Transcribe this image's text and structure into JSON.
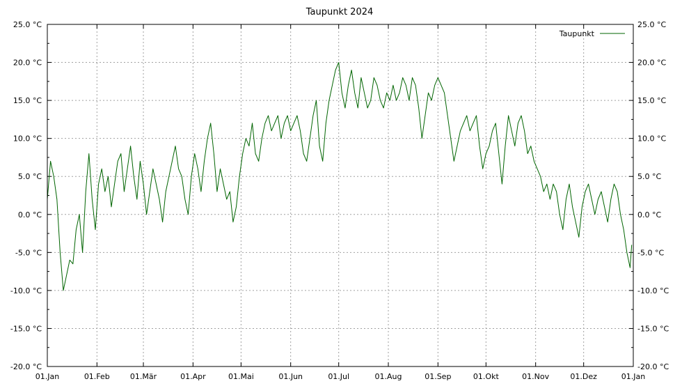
{
  "chart_data": {
    "type": "line",
    "title": "Taupunkt 2024",
    "xlabel": "",
    "ylabel": "",
    "ylim": [
      -20,
      25
    ],
    "y_ticks": [
      -20,
      -15,
      -10,
      -5,
      0,
      5,
      10,
      15,
      20,
      25
    ],
    "y_tick_labels": [
      "-20.0 °C",
      "-15.0 °C",
      "-10.0 °C",
      "-5.0 °C",
      "0.0 °C",
      "5.0 °C",
      "10.0 °C",
      "15.0 °C",
      "20.0 °C",
      "25.0 °C"
    ],
    "y_minor_step": 2.5,
    "y_axes": "left and right",
    "x_range": [
      "2024-01-01",
      "2025-01-01"
    ],
    "x_tick_dates": [
      "2024-01-01",
      "2024-02-01",
      "2024-03-01",
      "2024-04-01",
      "2024-05-01",
      "2024-06-01",
      "2024-07-01",
      "2024-08-01",
      "2024-09-01",
      "2024-10-01",
      "2024-11-01",
      "2024-12-01",
      "2025-01-01"
    ],
    "x_tick_labels": [
      "01.Jan",
      "01.Feb",
      "01.Mär",
      "01.Apr",
      "01.Mai",
      "01.Jun",
      "01.Jul",
      "01.Aug",
      "01.Sep",
      "01.Okt",
      "01.Nov",
      "01.Dez",
      "01.Jan"
    ],
    "grid": true,
    "legend_position": "top-right",
    "line_color": "#006400",
    "series": [
      {
        "name": "Taupunkt",
        "points": [
          [
            "2024-01-01",
            2.0
          ],
          [
            "2024-01-03",
            7.0
          ],
          [
            "2024-01-05",
            5.0
          ],
          [
            "2024-01-07",
            2.0
          ],
          [
            "2024-01-09",
            -5.0
          ],
          [
            "2024-01-11",
            -10.0
          ],
          [
            "2024-01-13",
            -8.0
          ],
          [
            "2024-01-15",
            -6.0
          ],
          [
            "2024-01-17",
            -6.5
          ],
          [
            "2024-01-19",
            -2.0
          ],
          [
            "2024-01-21",
            0.0
          ],
          [
            "2024-01-23",
            -5.0
          ],
          [
            "2024-01-25",
            3.0
          ],
          [
            "2024-01-27",
            8.0
          ],
          [
            "2024-01-29",
            2.0
          ],
          [
            "2024-01-31",
            -2.0
          ],
          [
            "2024-02-02",
            4.0
          ],
          [
            "2024-02-04",
            6.0
          ],
          [
            "2024-02-06",
            3.0
          ],
          [
            "2024-02-08",
            5.0
          ],
          [
            "2024-02-10",
            1.0
          ],
          [
            "2024-02-12",
            4.0
          ],
          [
            "2024-02-14",
            7.0
          ],
          [
            "2024-02-16",
            8.0
          ],
          [
            "2024-02-18",
            3.0
          ],
          [
            "2024-02-20",
            6.0
          ],
          [
            "2024-02-22",
            9.0
          ],
          [
            "2024-02-24",
            5.0
          ],
          [
            "2024-02-26",
            2.0
          ],
          [
            "2024-02-28",
            7.0
          ],
          [
            "2024-03-01",
            4.0
          ],
          [
            "2024-03-03",
            0.0
          ],
          [
            "2024-03-05",
            3.0
          ],
          [
            "2024-03-07",
            6.0
          ],
          [
            "2024-03-09",
            4.0
          ],
          [
            "2024-03-11",
            2.0
          ],
          [
            "2024-03-13",
            -1.0
          ],
          [
            "2024-03-15",
            3.0
          ],
          [
            "2024-03-17",
            5.0
          ],
          [
            "2024-03-19",
            7.0
          ],
          [
            "2024-03-21",
            9.0
          ],
          [
            "2024-03-23",
            6.0
          ],
          [
            "2024-03-25",
            5.0
          ],
          [
            "2024-03-27",
            2.0
          ],
          [
            "2024-03-29",
            0.0
          ],
          [
            "2024-03-31",
            5.0
          ],
          [
            "2024-04-02",
            8.0
          ],
          [
            "2024-04-04",
            6.0
          ],
          [
            "2024-04-06",
            3.0
          ],
          [
            "2024-04-08",
            7.0
          ],
          [
            "2024-04-10",
            10.0
          ],
          [
            "2024-04-12",
            12.0
          ],
          [
            "2024-04-14",
            8.0
          ],
          [
            "2024-04-16",
            3.0
          ],
          [
            "2024-04-18",
            6.0
          ],
          [
            "2024-04-20",
            4.0
          ],
          [
            "2024-04-22",
            2.0
          ],
          [
            "2024-04-24",
            3.0
          ],
          [
            "2024-04-26",
            -1.0
          ],
          [
            "2024-04-28",
            1.0
          ],
          [
            "2024-04-30",
            5.0
          ],
          [
            "2024-05-02",
            8.0
          ],
          [
            "2024-05-04",
            10.0
          ],
          [
            "2024-05-06",
            9.0
          ],
          [
            "2024-05-08",
            12.0
          ],
          [
            "2024-05-10",
            8.0
          ],
          [
            "2024-05-12",
            7.0
          ],
          [
            "2024-05-14",
            10.0
          ],
          [
            "2024-05-16",
            12.0
          ],
          [
            "2024-05-18",
            13.0
          ],
          [
            "2024-05-20",
            11.0
          ],
          [
            "2024-05-22",
            12.0
          ],
          [
            "2024-05-24",
            13.0
          ],
          [
            "2024-05-26",
            10.0
          ],
          [
            "2024-05-28",
            12.0
          ],
          [
            "2024-05-30",
            13.0
          ],
          [
            "2024-06-01",
            11.0
          ],
          [
            "2024-06-03",
            12.0
          ],
          [
            "2024-06-05",
            13.0
          ],
          [
            "2024-06-07",
            11.0
          ],
          [
            "2024-06-09",
            8.0
          ],
          [
            "2024-06-11",
            7.0
          ],
          [
            "2024-06-13",
            10.0
          ],
          [
            "2024-06-15",
            13.0
          ],
          [
            "2024-06-17",
            15.0
          ],
          [
            "2024-06-19",
            9.0
          ],
          [
            "2024-06-21",
            7.0
          ],
          [
            "2024-06-23",
            12.0
          ],
          [
            "2024-06-25",
            15.0
          ],
          [
            "2024-06-27",
            17.0
          ],
          [
            "2024-06-29",
            19.0
          ],
          [
            "2024-07-01",
            20.0
          ],
          [
            "2024-07-03",
            16.0
          ],
          [
            "2024-07-05",
            14.0
          ],
          [
            "2024-07-07",
            17.0
          ],
          [
            "2024-07-09",
            19.0
          ],
          [
            "2024-07-11",
            16.0
          ],
          [
            "2024-07-13",
            14.0
          ],
          [
            "2024-07-15",
            18.0
          ],
          [
            "2024-07-17",
            16.0
          ],
          [
            "2024-07-19",
            14.0
          ],
          [
            "2024-07-21",
            15.0
          ],
          [
            "2024-07-23",
            18.0
          ],
          [
            "2024-07-25",
            17.0
          ],
          [
            "2024-07-27",
            15.0
          ],
          [
            "2024-07-29",
            14.0
          ],
          [
            "2024-07-31",
            16.0
          ],
          [
            "2024-08-02",
            15.0
          ],
          [
            "2024-08-04",
            17.0
          ],
          [
            "2024-08-06",
            15.0
          ],
          [
            "2024-08-08",
            16.0
          ],
          [
            "2024-08-10",
            18.0
          ],
          [
            "2024-08-12",
            17.0
          ],
          [
            "2024-08-14",
            15.0
          ],
          [
            "2024-08-16",
            18.0
          ],
          [
            "2024-08-18",
            17.0
          ],
          [
            "2024-08-20",
            14.0
          ],
          [
            "2024-08-22",
            10.0
          ],
          [
            "2024-08-24",
            13.0
          ],
          [
            "2024-08-26",
            16.0
          ],
          [
            "2024-08-28",
            15.0
          ],
          [
            "2024-08-30",
            17.0
          ],
          [
            "2024-09-01",
            18.0
          ],
          [
            "2024-09-03",
            17.0
          ],
          [
            "2024-09-05",
            16.0
          ],
          [
            "2024-09-07",
            13.0
          ],
          [
            "2024-09-09",
            10.0
          ],
          [
            "2024-09-11",
            7.0
          ],
          [
            "2024-09-13",
            9.0
          ],
          [
            "2024-09-15",
            11.0
          ],
          [
            "2024-09-17",
            12.0
          ],
          [
            "2024-09-19",
            13.0
          ],
          [
            "2024-09-21",
            11.0
          ],
          [
            "2024-09-23",
            12.0
          ],
          [
            "2024-09-25",
            13.0
          ],
          [
            "2024-09-27",
            9.0
          ],
          [
            "2024-09-29",
            6.0
          ],
          [
            "2024-10-01",
            8.0
          ],
          [
            "2024-10-03",
            9.0
          ],
          [
            "2024-10-05",
            11.0
          ],
          [
            "2024-10-07",
            12.0
          ],
          [
            "2024-10-09",
            8.0
          ],
          [
            "2024-10-11",
            4.0
          ],
          [
            "2024-10-13",
            9.0
          ],
          [
            "2024-10-15",
            13.0
          ],
          [
            "2024-10-17",
            11.0
          ],
          [
            "2024-10-19",
            9.0
          ],
          [
            "2024-10-21",
            12.0
          ],
          [
            "2024-10-23",
            13.0
          ],
          [
            "2024-10-25",
            11.0
          ],
          [
            "2024-10-27",
            8.0
          ],
          [
            "2024-10-29",
            9.0
          ],
          [
            "2024-10-31",
            7.0
          ],
          [
            "2024-11-02",
            6.0
          ],
          [
            "2024-11-04",
            5.0
          ],
          [
            "2024-11-06",
            3.0
          ],
          [
            "2024-11-08",
            4.0
          ],
          [
            "2024-11-10",
            2.0
          ],
          [
            "2024-11-12",
            4.0
          ],
          [
            "2024-11-14",
            3.0
          ],
          [
            "2024-11-16",
            0.0
          ],
          [
            "2024-11-18",
            -2.0
          ],
          [
            "2024-11-20",
            2.0
          ],
          [
            "2024-11-22",
            4.0
          ],
          [
            "2024-11-24",
            1.0
          ],
          [
            "2024-11-26",
            -1.0
          ],
          [
            "2024-11-28",
            -3.0
          ],
          [
            "2024-11-30",
            1.0
          ],
          [
            "2024-12-02",
            3.0
          ],
          [
            "2024-12-04",
            4.0
          ],
          [
            "2024-12-06",
            2.0
          ],
          [
            "2024-12-08",
            0.0
          ],
          [
            "2024-12-10",
            2.0
          ],
          [
            "2024-12-12",
            3.0
          ],
          [
            "2024-12-14",
            1.0
          ],
          [
            "2024-12-16",
            -1.0
          ],
          [
            "2024-12-18",
            2.0
          ],
          [
            "2024-12-20",
            4.0
          ],
          [
            "2024-12-22",
            3.0
          ],
          [
            "2024-12-24",
            0.0
          ],
          [
            "2024-12-26",
            -2.0
          ],
          [
            "2024-12-28",
            -5.0
          ],
          [
            "2024-12-30",
            -7.0
          ],
          [
            "2024-12-31",
            -4.0
          ]
        ]
      }
    ]
  }
}
